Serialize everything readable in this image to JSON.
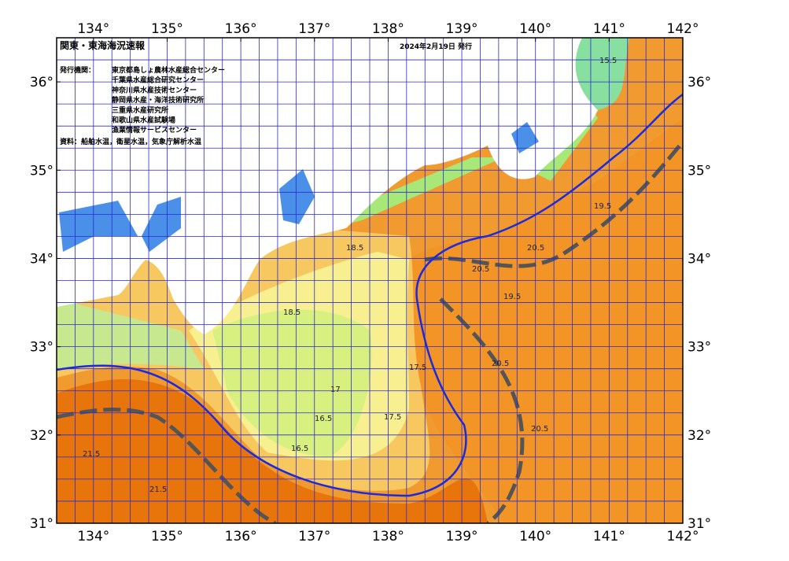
{
  "header": {
    "title": "関東・東海海況速報",
    "date": "2024年2月19日 発行",
    "issuer_label": "発行機関：",
    "issuers": [
      "東京都島しょ農林水産総合センター",
      "千葉県水産総合研究センター",
      "神奈川県水産技術センター",
      "静岡県水産・海洋技術研究所",
      "三重県水産研究所",
      "和歌山県水産試験場",
      "漁業情報サービスセンター"
    ],
    "source": "資料：船舶水温，衛星水温，気象庁解析水温"
  },
  "map": {
    "lon_ticks": [
      {
        "value": 134,
        "label": "134°"
      },
      {
        "value": 135,
        "label": "135°"
      },
      {
        "value": 136,
        "label": "136°"
      },
      {
        "value": 137,
        "label": "137°"
      },
      {
        "value": 138,
        "label": "138°"
      },
      {
        "value": 139,
        "label": "139°"
      },
      {
        "value": 140,
        "label": "140°"
      },
      {
        "value": 141,
        "label": "141°"
      },
      {
        "value": 142,
        "label": "142°"
      }
    ],
    "lat_ticks": [
      {
        "value": 36,
        "label": "36°"
      },
      {
        "value": 35,
        "label": "35°"
      },
      {
        "value": 34,
        "label": "34°"
      },
      {
        "value": 33,
        "label": "33°"
      },
      {
        "value": 32,
        "label": "32°"
      },
      {
        "value": 31,
        "label": "31°"
      }
    ],
    "isotherm_labels": [
      "20.5",
      "20.5",
      "20.5",
      "20.5",
      "19.5",
      "19.5",
      "18.5",
      "18.5",
      "17.5",
      "17.5",
      "16.5",
      "16.5",
      "17",
      "21.5",
      "21.5",
      "15.5"
    ]
  }
}
